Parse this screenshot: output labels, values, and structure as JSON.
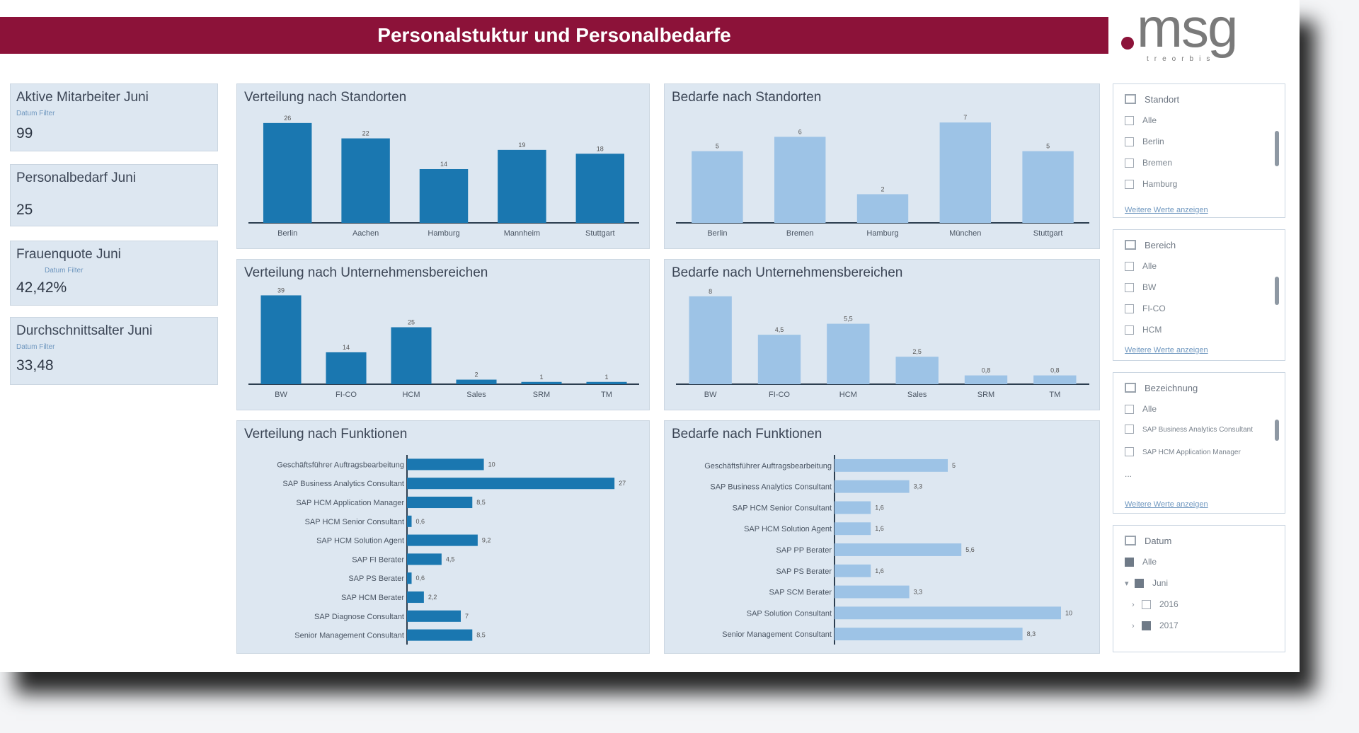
{
  "header": {
    "title": "Personalstuktur und Personalbedarfe"
  },
  "logo": {
    "text": "msg",
    "subtitle": "treorbis"
  },
  "kpis": [
    {
      "title": "Aktive Mitarbeiter Juni",
      "filter": "Datum Filter",
      "value": "99"
    },
    {
      "title": "Personalbedarf Juni",
      "filter": "",
      "value": "25"
    },
    {
      "title": "Frauenquote Juni",
      "filter": "Datum Filter",
      "value": "42,42%"
    },
    {
      "title": "Durchschnittsalter Juni",
      "filter": "Datum Filter",
      "value": "33,48"
    }
  ],
  "panels": {
    "verteilung_standorte": {
      "title": "Verteilung nach Standorten"
    },
    "bedarfe_standorte": {
      "title": "Bedarfe nach Standorten"
    },
    "verteilung_bereiche": {
      "title": "Verteilung nach Unternehmensbereichen"
    },
    "bedarfe_bereiche": {
      "title": "Bedarfe nach Unternehmensbereichen"
    },
    "verteilung_funktionen": {
      "title": "Verteilung nach Funktionen"
    },
    "bedarfe_funktionen": {
      "title": "Bedarfe nach Funktionen"
    }
  },
  "colors": {
    "brand": "#8c1239",
    "dark_bar": "#1a77b0",
    "light_bar": "#9dc3e6",
    "card": "#dde7f1"
  },
  "chart_data": [
    {
      "id": "verteilung_standorte",
      "type": "bar",
      "orientation": "vertical",
      "title": "Verteilung nach Standorten",
      "categories": [
        "Berlin",
        "Aachen",
        "Hamburg",
        "Mannheim",
        "Stuttgart"
      ],
      "values": [
        26,
        22,
        14,
        19,
        18
      ],
      "ylim": [
        0,
        28
      ],
      "color": "dark"
    },
    {
      "id": "bedarfe_standorte",
      "type": "bar",
      "orientation": "vertical",
      "title": "Bedarfe nach Standorten",
      "categories": [
        "Berlin",
        "Bremen",
        "Hamburg",
        "München",
        "Stuttgart"
      ],
      "values": [
        5,
        6,
        2,
        7,
        5
      ],
      "ylim": [
        0,
        7.5
      ],
      "color": "light"
    },
    {
      "id": "verteilung_bereiche",
      "type": "bar",
      "orientation": "vertical",
      "title": "Verteilung nach Unternehmensbereichen",
      "categories": [
        "BW",
        "FI-CO",
        "HCM",
        "Sales",
        "SRM",
        "TM"
      ],
      "values": [
        39,
        14,
        25,
        2,
        1,
        1
      ],
      "ylim": [
        0,
        41
      ],
      "color": "dark"
    },
    {
      "id": "bedarfe_bereiche",
      "type": "bar",
      "orientation": "vertical",
      "title": "Bedarfe nach Unternehmensbereichen",
      "categories": [
        "BW",
        "FI-CO",
        "HCM",
        "Sales",
        "SRM",
        "TM"
      ],
      "values": [
        8,
        4.5,
        5.5,
        2.5,
        0.8,
        0.8
      ],
      "ylim": [
        0,
        8.5
      ],
      "color": "light"
    },
    {
      "id": "verteilung_funktionen",
      "type": "bar",
      "orientation": "horizontal",
      "title": "Verteilung nach Funktionen",
      "categories": [
        "Geschäftsführer Auftragsbearbeitung",
        "SAP Business Analytics Consultant",
        "SAP HCM Application Manager",
        "SAP HCM Senior Consultant",
        "SAP HCM Solution Agent",
        "SAP FI Berater",
        "SAP PS Berater",
        "SAP HCM Berater",
        "SAP Diagnose Consultant",
        "Senior Management Consultant"
      ],
      "values": [
        10,
        27,
        8.5,
        0.6,
        9.2,
        4.5,
        0.6,
        2.2,
        7,
        8.5
      ],
      "xlim": [
        0,
        28
      ],
      "color": "dark"
    },
    {
      "id": "bedarfe_funktionen",
      "type": "bar",
      "orientation": "horizontal",
      "title": "Bedarfe nach Funktionen",
      "categories": [
        "Geschäftsführer Auftragsbearbeitung",
        "SAP Business Analytics Consultant",
        "SAP HCM Senior Consultant",
        "SAP HCM Solution Agent",
        "SAP PP Berater",
        "SAP PS Berater",
        "SAP SCM Berater",
        "SAP Solution Consultant",
        "Senior Management Consultant"
      ],
      "values": [
        5,
        3.3,
        1.6,
        1.6,
        5.6,
        1.6,
        3.3,
        10,
        8.3
      ],
      "xlim": [
        0,
        10.5
      ],
      "color": "light"
    }
  ],
  "slicers": [
    {
      "title": "Standort",
      "items": [
        {
          "label": "Alle",
          "checked": false
        },
        {
          "label": "Berlin",
          "checked": false
        },
        {
          "label": "Bremen",
          "checked": false
        },
        {
          "label": "Hamburg",
          "checked": false
        }
      ],
      "more": "Weitere Werte anzeigen"
    },
    {
      "title": "Bereich",
      "items": [
        {
          "label": "Alle",
          "checked": false
        },
        {
          "label": "BW",
          "checked": false
        },
        {
          "label": "FI-CO",
          "checked": false
        },
        {
          "label": "HCM",
          "checked": false
        }
      ],
      "more": "Weitere Werte anzeigen"
    },
    {
      "title": "Bezeichnung",
      "items": [
        {
          "label": "Alle",
          "checked": false
        },
        {
          "label": "SAP Business Analytics Consultant",
          "checked": false
        },
        {
          "label": "SAP HCM Application Manager",
          "checked": false
        },
        {
          "label": "...",
          "checked": false
        }
      ],
      "more": "Weitere Werte anzeigen"
    },
    {
      "title": "Datum",
      "items": [
        {
          "label": "Alle",
          "checked": true
        },
        {
          "label": "Juni",
          "checked": true
        },
        {
          "label": "2016",
          "checked": false
        },
        {
          "label": "2017",
          "checked": true
        }
      ],
      "more": ""
    }
  ]
}
